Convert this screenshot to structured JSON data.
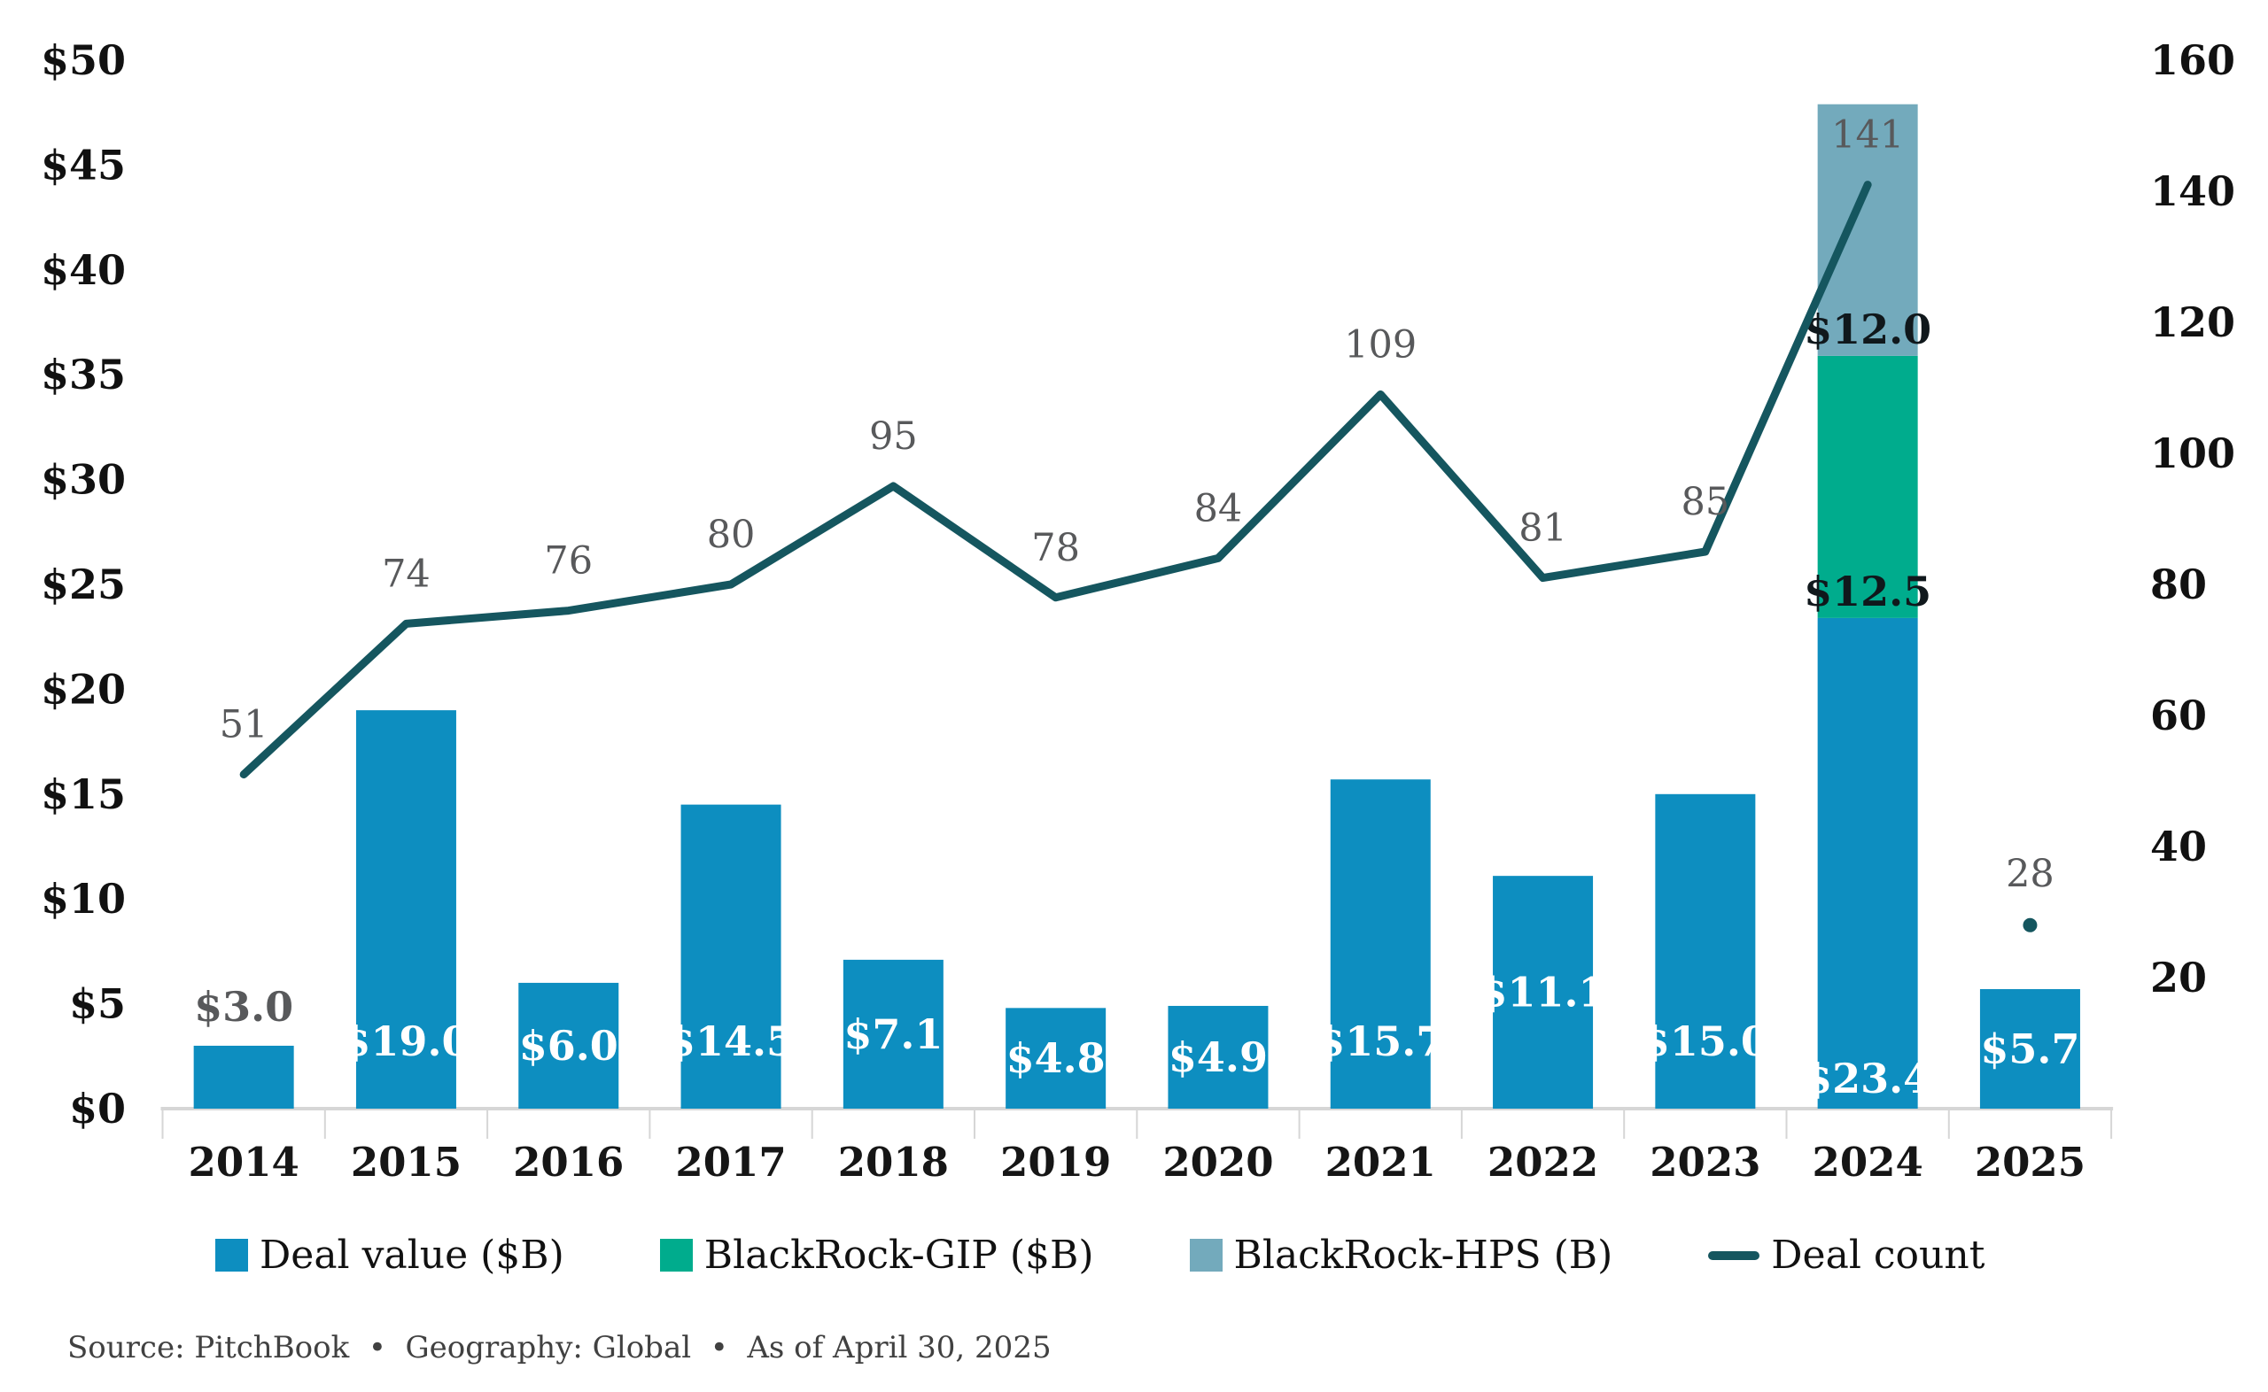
{
  "chart_data": {
    "type": "combo-stacked-bar-line",
    "categories": [
      "2014",
      "2015",
      "2016",
      "2017",
      "2018",
      "2019",
      "2020",
      "2021",
      "2022",
      "2023",
      "2024",
      "2025"
    ],
    "series": [
      {
        "name": "Deal value ($B)",
        "type": "bar",
        "color": "#0D8EC0",
        "values": [
          3.0,
          19.0,
          6.0,
          14.5,
          7.1,
          4.8,
          4.9,
          15.7,
          11.1,
          15.0,
          23.4,
          5.7
        ],
        "labels": [
          "$3.0",
          "$19.0",
          "$6.0",
          "$14.5",
          "$7.1",
          "$4.8",
          "$4.9",
          "$15.7",
          "$11.1",
          "$15.0",
          "$23.4",
          "$5.7"
        ]
      },
      {
        "name": "BlackRock-GIP ($B)",
        "type": "bar",
        "color": "#00AC8D",
        "values": [
          null,
          null,
          null,
          null,
          null,
          null,
          null,
          null,
          null,
          null,
          12.5,
          null
        ],
        "labels": [
          null,
          null,
          null,
          null,
          null,
          null,
          null,
          null,
          null,
          null,
          "$12.5",
          null
        ]
      },
      {
        "name": "BlackRock-HPS (B)",
        "type": "bar",
        "color": "#73AABC",
        "values": [
          null,
          null,
          null,
          null,
          null,
          null,
          null,
          null,
          null,
          null,
          12.0,
          null
        ],
        "labels": [
          null,
          null,
          null,
          null,
          null,
          null,
          null,
          null,
          null,
          null,
          "$12.0",
          null
        ]
      },
      {
        "name": "Deal count",
        "type": "line",
        "color": "#15565F",
        "values": [
          51,
          74,
          76,
          80,
          95,
          78,
          84,
          109,
          81,
          85,
          141,
          28
        ],
        "labels": [
          "51",
          "74",
          "76",
          "80",
          "95",
          "78",
          "84",
          "109",
          "81",
          "85",
          "141",
          "28"
        ],
        "detached_last_point": true
      }
    ],
    "left_axis": {
      "min": 0,
      "max": 50,
      "ticks": [
        "$0",
        "$5",
        "$10",
        "$15",
        "$20",
        "$25",
        "$30",
        "$35",
        "$40",
        "$45",
        "$50"
      ]
    },
    "right_axis": {
      "min": 0,
      "max": 160,
      "ticks": [
        "20",
        "40",
        "60",
        "80",
        "100",
        "120",
        "140",
        "160"
      ]
    },
    "grid": "off",
    "legend_position": "bottom",
    "legend": [
      {
        "swatch": "square",
        "color": "#0D8EC0",
        "label": "Deal value ($B)"
      },
      {
        "swatch": "square",
        "color": "#00AC8D",
        "label": "BlackRock-GIP ($B)"
      },
      {
        "swatch": "square",
        "color": "#73AABC",
        "label": "BlackRock-HPS (B)"
      },
      {
        "swatch": "line",
        "color": "#15565F",
        "label": "Deal count"
      }
    ],
    "source_line": "Source: PitchBook  •  Geography: Global  •  As of April 30, 2025",
    "colors": {
      "deal_value": "#0D8EC0",
      "blackrock_gip": "#00AC8D",
      "blackrock_hps": "#73AABC",
      "deal_count_line": "#15565F",
      "muted_label": "#58595B",
      "axis_line": "#D6D6D6"
    }
  }
}
